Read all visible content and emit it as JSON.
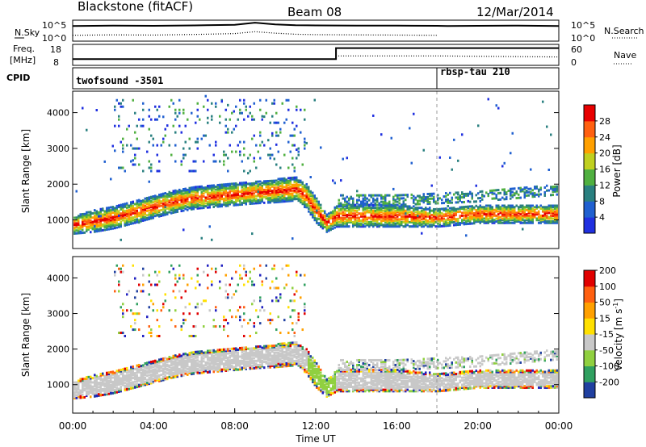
{
  "header": {
    "title": "Blackstone (fitACF)",
    "beam": "Beam 08",
    "date": "12/Mar/2014"
  },
  "colors": {
    "power": [
      "#2030e0",
      "#2060d0",
      "#2a8080",
      "#50b040",
      "#c0d020",
      "#ffa000",
      "#ff6010",
      "#e80000"
    ],
    "velocity": [
      "#e00000",
      "#ff6010",
      "#ffa000",
      "#ffe000",
      "#c8c8c8",
      "#90d040",
      "#30a060",
      "#2040a0",
      "#2020c0"
    ],
    "ground_scatter": "#c8c8c8"
  },
  "chart_data": [
    {
      "type": "line",
      "name": "noise_panel",
      "left_labels": [
        "N.Sky"
      ],
      "right_labels": [
        "N.Search"
      ],
      "left_ticks": [
        "10^5",
        "10^0"
      ],
      "right_ticks": [
        "10^5",
        "10^0"
      ],
      "x_range_hours": [
        0,
        24
      ],
      "series": [
        {
          "line": "solid",
          "x": [
            0,
            2,
            4,
            6,
            8,
            9,
            10,
            11,
            12,
            14,
            16,
            18,
            18.5,
            20,
            22,
            24
          ],
          "y_frac": [
            0.72,
            0.74,
            0.73,
            0.75,
            0.78,
            0.88,
            0.8,
            0.76,
            0.75,
            0.74,
            0.74,
            0.73,
            0.72,
            0.73,
            0.74,
            0.72
          ]
        },
        {
          "line": "dotted",
          "x": [
            0,
            2,
            4,
            6,
            8,
            9,
            10,
            11,
            12,
            14,
            16,
            18
          ],
          "y_frac": [
            0.28,
            0.3,
            0.29,
            0.32,
            0.36,
            0.45,
            0.38,
            0.33,
            0.31,
            0.3,
            0.29,
            0.28
          ]
        }
      ]
    },
    {
      "type": "line",
      "name": "frequency_panel",
      "left_labels": [
        "Freq.",
        "[MHz]"
      ],
      "right_labels": [
        "Nave"
      ],
      "left_ticks": [
        "18",
        "8"
      ],
      "right_ticks": [
        "60",
        "0"
      ],
      "series": [
        {
          "line": "solid",
          "x": [
            0,
            13,
            13,
            18,
            18,
            24
          ],
          "y_frac": [
            0.3,
            0.3,
            0.82,
            0.82,
            0.82,
            0.82
          ]
        },
        {
          "line": "dotted",
          "x": [
            13,
            18,
            24
          ],
          "y_frac": [
            0.45,
            0.45,
            0.4
          ]
        }
      ]
    },
    {
      "type": "table",
      "name": "cpid_panel",
      "label": "CPID",
      "segments": [
        {
          "start_hour": 0,
          "text": "twofsound -3501"
        },
        {
          "start_hour": 18,
          "text": "rbsp-tau 210"
        }
      ]
    },
    {
      "type": "heatmap",
      "name": "power_panel",
      "ylabel": "Slant Range [km]",
      "ylim": [
        200,
        4600
      ],
      "yticks": [
        1000,
        2000,
        3000,
        4000
      ],
      "colorbar_label": "Power [dB]",
      "colorbar_ticks": [
        4,
        8,
        12,
        16,
        20,
        24,
        28
      ],
      "colorbar_range": [
        0,
        32
      ],
      "main_echo": {
        "hours": [
          0,
          1,
          2,
          3,
          4,
          5,
          6,
          7,
          8,
          9,
          10,
          11,
          11.5,
          12,
          12.5,
          13,
          14,
          16,
          18,
          20,
          22,
          24
        ],
        "center_km": [
          900,
          1000,
          1100,
          1250,
          1400,
          1550,
          1650,
          1700,
          1750,
          1800,
          1850,
          1900,
          1700,
          1300,
          950,
          1150,
          1150,
          1150,
          1100,
          1200,
          1200,
          1200
        ],
        "spread_km": [
          250,
          300,
          300,
          300,
          300,
          300,
          300,
          300,
          300,
          300,
          320,
          320,
          350,
          350,
          250,
          300,
          300,
          300,
          250,
          250,
          250,
          250
        ]
      },
      "secondary_echo": {
        "hours": [
          13,
          16,
          18,
          20,
          22,
          24
        ],
        "center_km": [
          1600,
          1600,
          1650,
          1700,
          1800,
          1900
        ]
      },
      "upper_scatter": {
        "hours": [
          2,
          11.5
        ],
        "range_km": [
          2400,
          4400
        ]
      }
    },
    {
      "type": "heatmap",
      "name": "velocity_panel",
      "ylabel": "Slant Range [km]",
      "ylim": [
        200,
        4600
      ],
      "yticks": [
        1000,
        2000,
        3000,
        4000
      ],
      "colorbar_label": "Velocity [m s^-1]",
      "colorbar_ticks": [
        "200",
        "100",
        "50",
        "15",
        "-15",
        "-50",
        "-100",
        "-200"
      ],
      "green_feature": {
        "start_hour": 11.6,
        "end_hour": 12.9
      }
    },
    {
      "type": "table",
      "name": "time_axis",
      "xlabel": "Time UT",
      "xticks": [
        "00:00",
        "04:00",
        "08:00",
        "12:00",
        "16:00",
        "20:00",
        "00:00"
      ],
      "x_range_hours": [
        0,
        24
      ]
    }
  ]
}
